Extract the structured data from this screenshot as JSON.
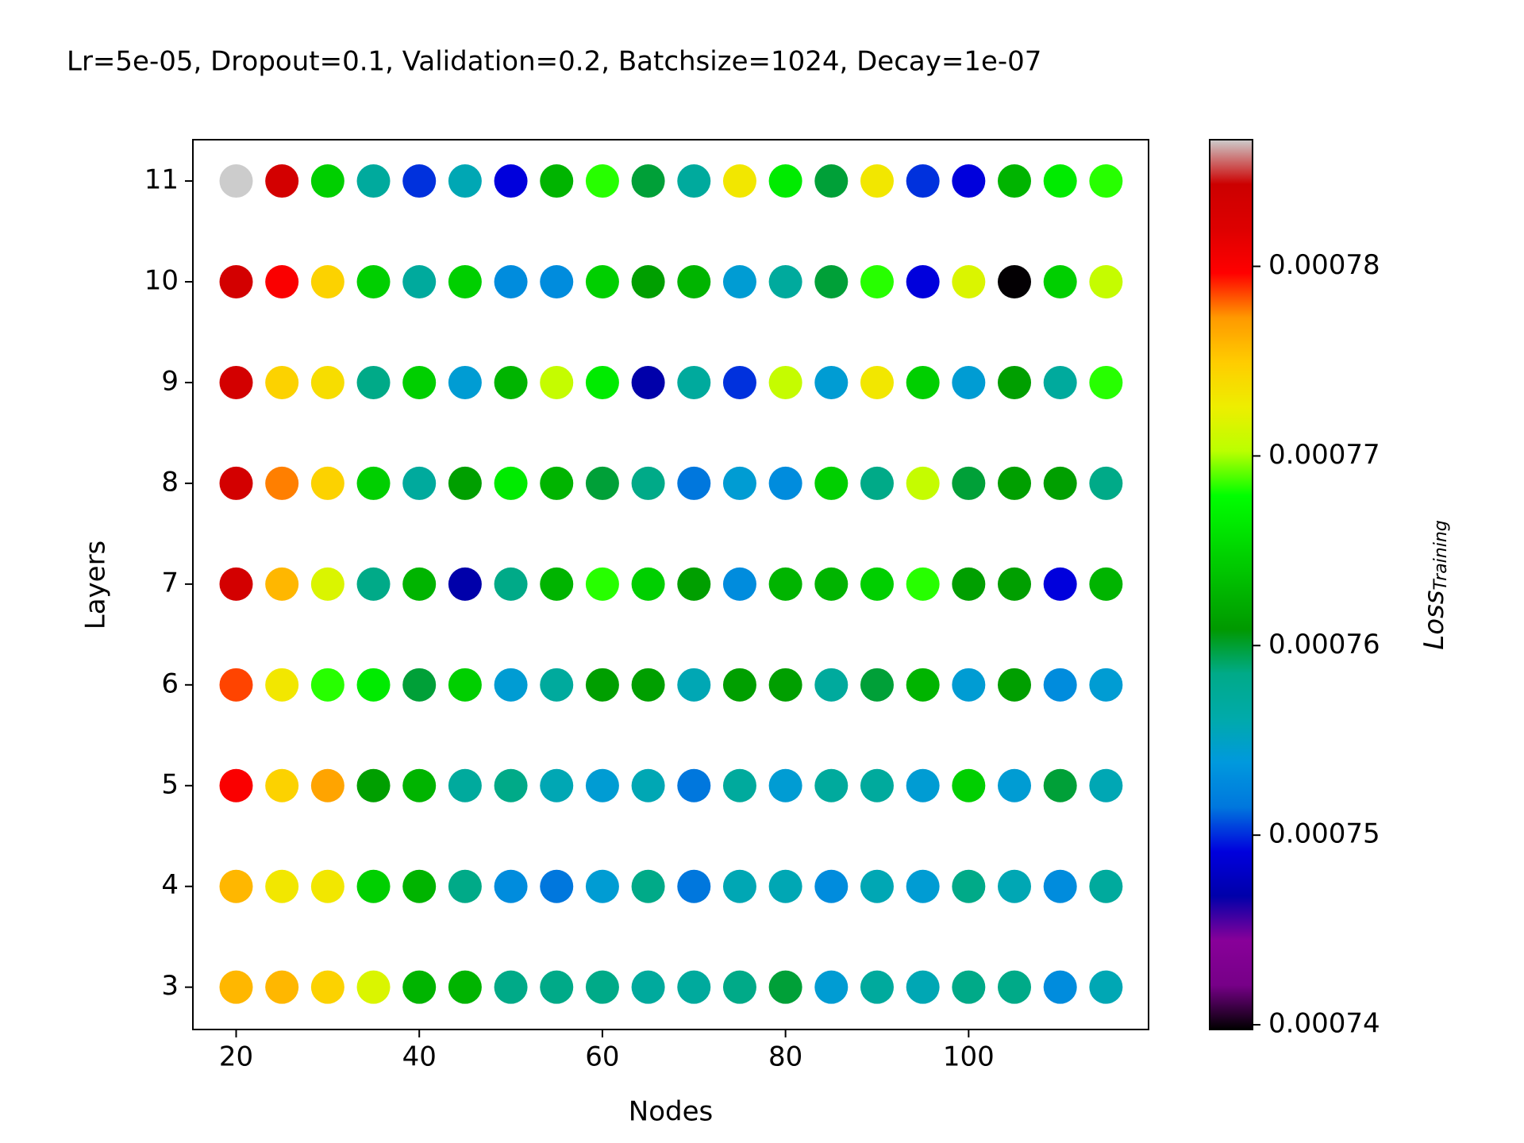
{
  "chart_data": {
    "type": "scatter",
    "title": "Lr=5e-05, Dropout=0.1, Validation=0.2, Batchsize=1024, Decay=1e-07",
    "x_label": "Nodes",
    "y_label": "Layers",
    "colorbar_label": {
      "text": "Loss",
      "subscript": "Training"
    },
    "colormap": "nipy_spectral",
    "clim": [
      0.00073975,
      0.00078668
    ],
    "cticks": [
      0.00074,
      0.00075,
      0.00076,
      0.00077,
      0.00078
    ],
    "xlim": [
      15.275,
      119.65
    ],
    "ylim": [
      2.58,
      11.41
    ],
    "xticks": [
      20,
      40,
      60,
      80,
      100
    ],
    "yticks": [
      3,
      4,
      5,
      6,
      7,
      8,
      9,
      10,
      11
    ],
    "x": [
      20,
      25,
      30,
      35,
      40,
      45,
      50,
      55,
      60,
      65,
      70,
      75,
      80,
      85,
      90,
      95,
      100,
      105,
      110,
      115
    ],
    "series": [
      {
        "y": 11,
        "values": [
          0.0007867,
          0.0007834,
          0.0007646,
          0.0007571,
          0.0007501,
          0.0007557,
          0.0007491,
          0.0007627,
          0.0007684,
          0.0007599,
          0.0007571,
          0.0007731,
          0.0007665,
          0.0007599,
          0.0007731,
          0.0007501,
          0.0007491,
          0.0007627,
          0.0007665,
          0.0007684
        ]
      },
      {
        "y": 10,
        "values": [
          0.0007834,
          0.00078,
          0.0007745,
          0.0007646,
          0.0007571,
          0.0007646,
          0.0007529,
          0.0007529,
          0.0007646,
          0.0007613,
          0.0007627,
          0.0007543,
          0.0007571,
          0.0007599,
          0.0007684,
          0.0007491,
          0.0007717,
          0.0007398,
          0.0007646,
          0.0007707
        ]
      },
      {
        "y": 9,
        "values": [
          0.0007834,
          0.0007745,
          0.0007738,
          0.0007585,
          0.0007646,
          0.0007543,
          0.0007627,
          0.0007707,
          0.0007665,
          0.0007468,
          0.0007571,
          0.0007501,
          0.0007707,
          0.0007543,
          0.0007731,
          0.0007646,
          0.0007543,
          0.0007613,
          0.0007571,
          0.0007684
        ]
      },
      {
        "y": 8,
        "values": [
          0.0007834,
          0.0007777,
          0.0007745,
          0.0007646,
          0.0007571,
          0.0007613,
          0.0007665,
          0.0007627,
          0.0007599,
          0.0007585,
          0.0007515,
          0.0007543,
          0.0007529,
          0.0007646,
          0.0007585,
          0.0007707,
          0.0007599,
          0.0007613,
          0.0007613,
          0.0007585
        ]
      },
      {
        "y": 7,
        "values": [
          0.0007834,
          0.0007759,
          0.0007717,
          0.0007585,
          0.0007627,
          0.0007468,
          0.0007585,
          0.0007627,
          0.0007684,
          0.0007646,
          0.0007613,
          0.0007529,
          0.0007627,
          0.0007627,
          0.0007646,
          0.0007684,
          0.0007613,
          0.0007613,
          0.0007491,
          0.0007627
        ]
      },
      {
        "y": 6,
        "values": [
          0.0007786,
          0.0007731,
          0.0007684,
          0.0007665,
          0.0007599,
          0.0007646,
          0.0007543,
          0.0007571,
          0.0007613,
          0.0007613,
          0.0007557,
          0.0007613,
          0.0007613,
          0.0007571,
          0.0007599,
          0.0007627,
          0.0007543,
          0.0007613,
          0.0007529,
          0.0007543
        ]
      },
      {
        "y": 5,
        "values": [
          0.00078,
          0.0007745,
          0.0007768,
          0.0007613,
          0.0007627,
          0.0007571,
          0.0007585,
          0.0007557,
          0.0007543,
          0.0007557,
          0.0007515,
          0.0007571,
          0.0007543,
          0.0007571,
          0.0007571,
          0.0007543,
          0.0007646,
          0.0007543,
          0.0007599,
          0.0007557
        ]
      },
      {
        "y": 4,
        "values": [
          0.0007759,
          0.0007731,
          0.0007731,
          0.0007646,
          0.0007627,
          0.0007585,
          0.0007529,
          0.0007515,
          0.0007543,
          0.0007585,
          0.0007515,
          0.0007557,
          0.0007557,
          0.0007529,
          0.0007557,
          0.0007543,
          0.0007585,
          0.0007557,
          0.0007529,
          0.0007571
        ]
      },
      {
        "y": 3,
        "values": [
          0.0007759,
          0.0007759,
          0.0007745,
          0.0007717,
          0.0007627,
          0.0007627,
          0.0007585,
          0.0007585,
          0.0007585,
          0.0007571,
          0.0007571,
          0.0007585,
          0.0007599,
          0.0007543,
          0.0007571,
          0.0007557,
          0.0007585,
          0.0007585,
          0.0007529,
          0.0007557
        ]
      }
    ]
  }
}
